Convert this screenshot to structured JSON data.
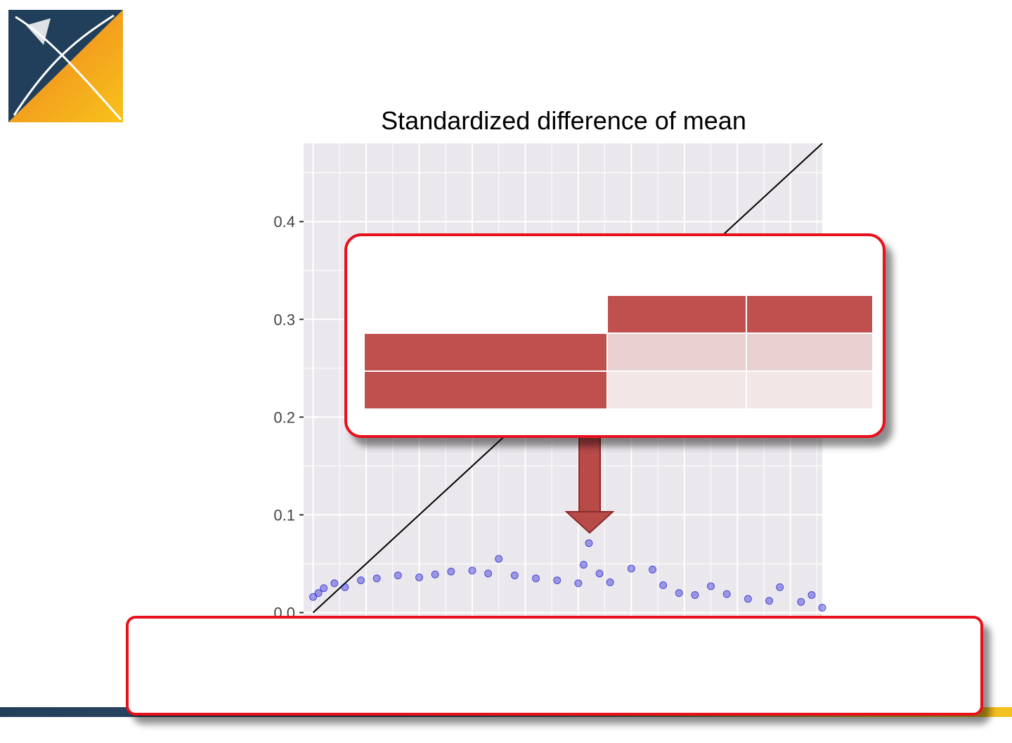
{
  "colors": {
    "accent_red": "#e8101b",
    "table_header": "#c0504d",
    "table_row_odd": "#e8cfd0",
    "table_row_even": "#f2e6e6",
    "point_color": "#0000cc",
    "panel_bg": "#ebe8ed"
  },
  "logo": {
    "icon": "ohdsi-logo-icon"
  },
  "chart_data": {
    "type": "scatter",
    "title": "Standardized difference of mean",
    "xlabel": "",
    "ylabel": "",
    "ylim": [
      -0.009,
      0.48
    ],
    "yticks": [
      0.0,
      0.1,
      0.2,
      0.3,
      0.4
    ],
    "ytick_labels": [
      "0.0",
      "0.1",
      "0.2",
      "0.3",
      "0.4"
    ],
    "grid": true,
    "reference_line": "y = x",
    "point_color": "#0000cc",
    "series": [
      {
        "points": [
          [
            0.0,
            0.016
          ],
          [
            0.005,
            0.02
          ],
          [
            0.01,
            0.025
          ],
          [
            0.02,
            0.03
          ],
          [
            0.03,
            0.026
          ],
          [
            0.045,
            0.033
          ],
          [
            0.06,
            0.035
          ],
          [
            0.08,
            0.038
          ],
          [
            0.1,
            0.036
          ],
          [
            0.115,
            0.039
          ],
          [
            0.13,
            0.042
          ],
          [
            0.15,
            0.043
          ],
          [
            0.165,
            0.04
          ],
          [
            0.175,
            0.055
          ],
          [
            0.19,
            0.038
          ],
          [
            0.21,
            0.035
          ],
          [
            0.23,
            0.033
          ],
          [
            0.25,
            0.03
          ],
          [
            0.26,
            0.071
          ],
          [
            0.255,
            0.049
          ],
          [
            0.27,
            0.04
          ],
          [
            0.28,
            0.031
          ],
          [
            0.3,
            0.045
          ],
          [
            0.32,
            0.044
          ],
          [
            0.33,
            0.028
          ],
          [
            0.345,
            0.02
          ],
          [
            0.36,
            0.018
          ],
          [
            0.375,
            0.027
          ],
          [
            0.39,
            0.019
          ],
          [
            0.41,
            0.014
          ],
          [
            0.43,
            0.012
          ],
          [
            0.44,
            0.026
          ],
          [
            0.46,
            0.011
          ],
          [
            0.47,
            0.018
          ],
          [
            0.48,
            0.005
          ]
        ]
      }
    ]
  },
  "table_callout": {
    "header_cells": [
      "",
      "",
      ""
    ],
    "rows": [
      {
        "label": "",
        "cells": [
          "",
          ""
        ]
      },
      {
        "label": "",
        "cells": [
          "",
          ""
        ]
      }
    ]
  },
  "bottom_callout": {
    "text": ""
  }
}
